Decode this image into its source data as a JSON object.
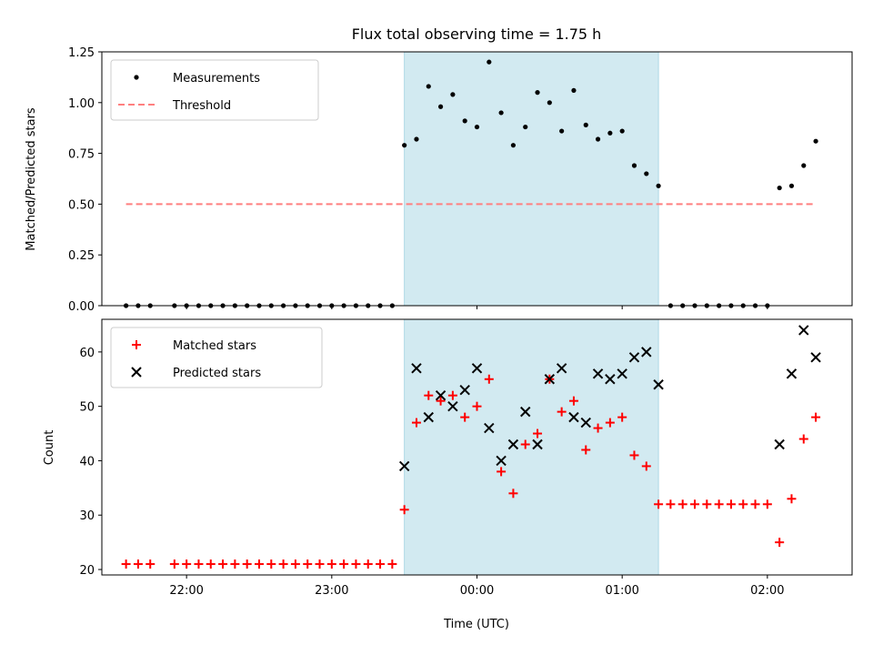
{
  "chart_data": [
    {
      "type": "scatter",
      "title": "Flux total observing time = 1.75 h",
      "xlabel": "",
      "ylabel": "Matched/Predicted stars",
      "xlim": [
        "21:25",
        "02:35"
      ],
      "ylim": [
        0,
        1.25
      ],
      "yticks": [
        "0.00",
        "0.25",
        "0.50",
        "0.75",
        "1.00",
        "1.25"
      ],
      "grid": false,
      "legend_position": "top-left",
      "shaded_interval": [
        "23:30",
        "01:15"
      ],
      "shade_color": "#add8e6",
      "series": [
        {
          "name": "Measurements",
          "marker": "dot",
          "color": "#000000",
          "points": [
            [
              "21:35",
              0
            ],
            [
              "21:40",
              0
            ],
            [
              "21:45",
              0
            ],
            [
              "21:55",
              0
            ],
            [
              "22:00",
              0
            ],
            [
              "22:05",
              0
            ],
            [
              "22:10",
              0
            ],
            [
              "22:15",
              0
            ],
            [
              "22:20",
              0
            ],
            [
              "22:25",
              0
            ],
            [
              "22:30",
              0
            ],
            [
              "22:35",
              0
            ],
            [
              "22:40",
              0
            ],
            [
              "22:45",
              0
            ],
            [
              "22:50",
              0
            ],
            [
              "22:55",
              0
            ],
            [
              "23:00",
              0
            ],
            [
              "23:05",
              0
            ],
            [
              "23:10",
              0
            ],
            [
              "23:15",
              0
            ],
            [
              "23:20",
              0
            ],
            [
              "23:25",
              0
            ],
            [
              "23:30",
              0.79
            ],
            [
              "23:35",
              0.82
            ],
            [
              "23:40",
              1.08
            ],
            [
              "23:45",
              0.98
            ],
            [
              "23:50",
              1.04
            ],
            [
              "23:55",
              0.91
            ],
            [
              "00:00",
              0.88
            ],
            [
              "00:05",
              1.2
            ],
            [
              "00:10",
              0.95
            ],
            [
              "00:15",
              0.79
            ],
            [
              "00:20",
              0.88
            ],
            [
              "00:25",
              1.05
            ],
            [
              "00:30",
              1.0
            ],
            [
              "00:35",
              0.86
            ],
            [
              "00:40",
              1.06
            ],
            [
              "00:45",
              0.89
            ],
            [
              "00:50",
              0.82
            ],
            [
              "00:55",
              0.85
            ],
            [
              "01:00",
              0.86
            ],
            [
              "01:05",
              0.69
            ],
            [
              "01:10",
              0.65
            ],
            [
              "01:15",
              0.59
            ],
            [
              "01:20",
              0
            ],
            [
              "01:25",
              0
            ],
            [
              "01:30",
              0
            ],
            [
              "01:35",
              0
            ],
            [
              "01:40",
              0
            ],
            [
              "01:45",
              0
            ],
            [
              "01:50",
              0
            ],
            [
              "01:55",
              0
            ],
            [
              "02:00",
              0
            ],
            [
              "02:05",
              0.58
            ],
            [
              "02:10",
              0.59
            ],
            [
              "02:15",
              0.69
            ],
            [
              "02:20",
              0.81
            ]
          ]
        },
        {
          "name": "Threshold",
          "marker": "dashed-line",
          "color": "#ff7f7f",
          "points": [
            [
              "21:35",
              0.5
            ],
            [
              "02:20",
              0.5
            ]
          ]
        }
      ]
    },
    {
      "type": "scatter",
      "title": "",
      "xlabel": "Time (UTC)",
      "ylabel": "Count",
      "xlim": [
        "21:25",
        "02:35"
      ],
      "ylim": [
        19,
        66
      ],
      "yticks": [
        "20",
        "30",
        "40",
        "50",
        "60"
      ],
      "xticks": [
        "22:00",
        "23:00",
        "00:00",
        "01:00",
        "02:00"
      ],
      "grid": false,
      "legend_position": "top-left",
      "shaded_interval": [
        "23:30",
        "01:15"
      ],
      "shade_color": "#add8e6",
      "series": [
        {
          "name": "Matched stars",
          "marker": "plus",
          "color": "#ff0000",
          "points": [
            [
              "21:35",
              21
            ],
            [
              "21:40",
              21
            ],
            [
              "21:45",
              21
            ],
            [
              "21:55",
              21
            ],
            [
              "22:00",
              21
            ],
            [
              "22:05",
              21
            ],
            [
              "22:10",
              21
            ],
            [
              "22:15",
              21
            ],
            [
              "22:20",
              21
            ],
            [
              "22:25",
              21
            ],
            [
              "22:30",
              21
            ],
            [
              "22:35",
              21
            ],
            [
              "22:40",
              21
            ],
            [
              "22:45",
              21
            ],
            [
              "22:50",
              21
            ],
            [
              "22:55",
              21
            ],
            [
              "23:00",
              21
            ],
            [
              "23:05",
              21
            ],
            [
              "23:10",
              21
            ],
            [
              "23:15",
              21
            ],
            [
              "23:20",
              21
            ],
            [
              "23:25",
              21
            ],
            [
              "23:30",
              31
            ],
            [
              "23:35",
              47
            ],
            [
              "23:40",
              52
            ],
            [
              "23:45",
              51
            ],
            [
              "23:50",
              52
            ],
            [
              "23:55",
              48
            ],
            [
              "00:00",
              50
            ],
            [
              "00:05",
              55
            ],
            [
              "00:10",
              38
            ],
            [
              "00:15",
              34
            ],
            [
              "00:20",
              43
            ],
            [
              "00:25",
              45
            ],
            [
              "00:30",
              55
            ],
            [
              "00:35",
              49
            ],
            [
              "00:40",
              51
            ],
            [
              "00:45",
              42
            ],
            [
              "00:50",
              46
            ],
            [
              "00:55",
              47
            ],
            [
              "01:00",
              48
            ],
            [
              "01:05",
              41
            ],
            [
              "01:10",
              39
            ],
            [
              "01:15",
              32
            ],
            [
              "01:20",
              32
            ],
            [
              "01:25",
              32
            ],
            [
              "01:30",
              32
            ],
            [
              "01:35",
              32
            ],
            [
              "01:40",
              32
            ],
            [
              "01:45",
              32
            ],
            [
              "01:50",
              32
            ],
            [
              "01:55",
              32
            ],
            [
              "02:00",
              32
            ],
            [
              "02:05",
              25
            ],
            [
              "02:10",
              33
            ],
            [
              "02:15",
              44
            ],
            [
              "02:20",
              48
            ]
          ]
        },
        {
          "name": "Predicted stars",
          "marker": "x",
          "color": "#000000",
          "points": [
            [
              "23:30",
              39
            ],
            [
              "23:35",
              57
            ],
            [
              "23:40",
              48
            ],
            [
              "23:45",
              52
            ],
            [
              "23:50",
              50
            ],
            [
              "23:55",
              53
            ],
            [
              "00:00",
              57
            ],
            [
              "00:05",
              46
            ],
            [
              "00:10",
              40
            ],
            [
              "00:15",
              43
            ],
            [
              "00:20",
              49
            ],
            [
              "00:25",
              43
            ],
            [
              "00:30",
              55
            ],
            [
              "00:35",
              57
            ],
            [
              "00:40",
              48
            ],
            [
              "00:45",
              47
            ],
            [
              "00:50",
              56
            ],
            [
              "00:55",
              55
            ],
            [
              "01:00",
              56
            ],
            [
              "01:05",
              59
            ],
            [
              "01:10",
              60
            ],
            [
              "01:15",
              54
            ],
            [
              "02:05",
              43
            ],
            [
              "02:10",
              56
            ],
            [
              "02:15",
              64
            ],
            [
              "02:20",
              59
            ]
          ]
        }
      ]
    }
  ]
}
